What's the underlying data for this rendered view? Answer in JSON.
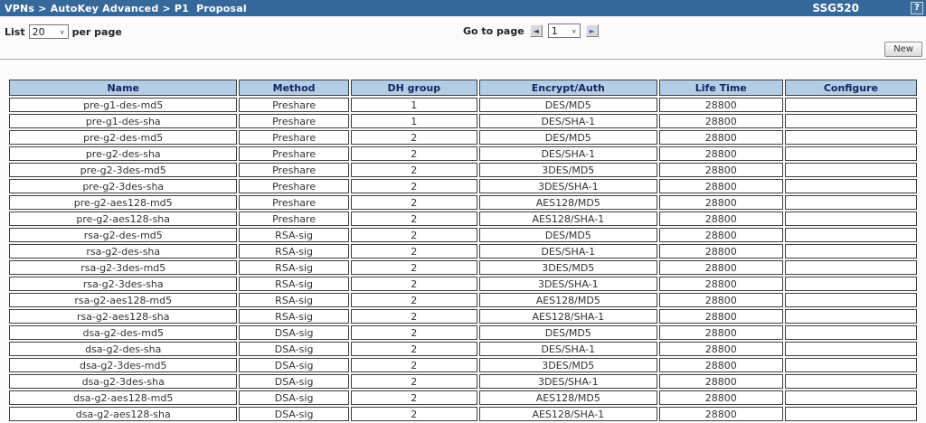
{
  "titlebar": {
    "breadcrumb": "VPNs > AutoKey Advanced > P1  Proposal",
    "device": "SSG520",
    "help_icon": "?"
  },
  "toolbar": {
    "list_label": "List",
    "list_value": "20",
    "per_page_label": "per page",
    "goto_label": "Go to page",
    "page_value": "1",
    "prev_icon": "◄",
    "next_icon": "►",
    "chevron_icon": "∨",
    "new_button": "New"
  },
  "table": {
    "columns": [
      "Name",
      "Method",
      "DH group",
      "Encrypt/Auth",
      "Life Time",
      "Configure"
    ],
    "rows": [
      [
        "pre-g1-des-md5",
        "Preshare",
        "1",
        "DES/MD5",
        "28800",
        ""
      ],
      [
        "pre-g1-des-sha",
        "Preshare",
        "1",
        "DES/SHA-1",
        "28800",
        ""
      ],
      [
        "pre-g2-des-md5",
        "Preshare",
        "2",
        "DES/MD5",
        "28800",
        ""
      ],
      [
        "pre-g2-des-sha",
        "Preshare",
        "2",
        "DES/SHA-1",
        "28800",
        ""
      ],
      [
        "pre-g2-3des-md5",
        "Preshare",
        "2",
        "3DES/MD5",
        "28800",
        ""
      ],
      [
        "pre-g2-3des-sha",
        "Preshare",
        "2",
        "3DES/SHA-1",
        "28800",
        ""
      ],
      [
        "pre-g2-aes128-md5",
        "Preshare",
        "2",
        "AES128/MD5",
        "28800",
        ""
      ],
      [
        "pre-g2-aes128-sha",
        "Preshare",
        "2",
        "AES128/SHA-1",
        "28800",
        ""
      ],
      [
        "rsa-g2-des-md5",
        "RSA-sig",
        "2",
        "DES/MD5",
        "28800",
        ""
      ],
      [
        "rsa-g2-des-sha",
        "RSA-sig",
        "2",
        "DES/SHA-1",
        "28800",
        ""
      ],
      [
        "rsa-g2-3des-md5",
        "RSA-sig",
        "2",
        "3DES/MD5",
        "28800",
        ""
      ],
      [
        "rsa-g2-3des-sha",
        "RSA-sig",
        "2",
        "3DES/SHA-1",
        "28800",
        ""
      ],
      [
        "rsa-g2-aes128-md5",
        "RSA-sig",
        "2",
        "AES128/MD5",
        "28800",
        ""
      ],
      [
        "rsa-g2-aes128-sha",
        "RSA-sig",
        "2",
        "AES128/SHA-1",
        "28800",
        ""
      ],
      [
        "dsa-g2-des-md5",
        "DSA-sig",
        "2",
        "DES/MD5",
        "28800",
        ""
      ],
      [
        "dsa-g2-des-sha",
        "DSA-sig",
        "2",
        "DES/SHA-1",
        "28800",
        ""
      ],
      [
        "dsa-g2-3des-md5",
        "DSA-sig",
        "2",
        "3DES/MD5",
        "28800",
        ""
      ],
      [
        "dsa-g2-3des-sha",
        "DSA-sig",
        "2",
        "3DES/SHA-1",
        "28800",
        ""
      ],
      [
        "dsa-g2-aes128-md5",
        "DSA-sig",
        "2",
        "AES128/MD5",
        "28800",
        ""
      ],
      [
        "dsa-g2-aes128-sha",
        "DSA-sig",
        "2",
        "AES128/SHA-1",
        "28800",
        ""
      ]
    ]
  },
  "colors": {
    "titlebar_bg": "#35699c",
    "table_header_bg": "#b3cde7",
    "table_border": "#3f3f3f",
    "header_text": "#14265c"
  }
}
